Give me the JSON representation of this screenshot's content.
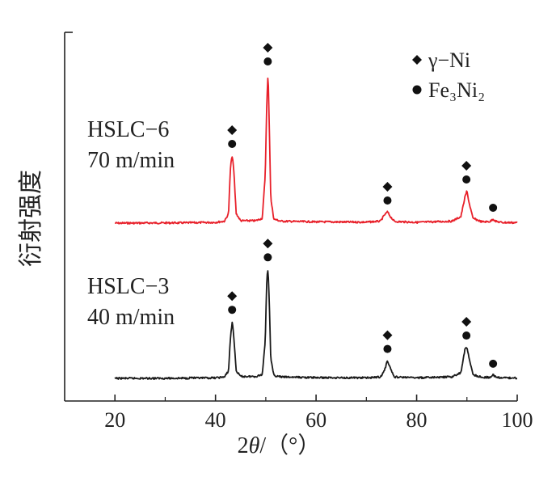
{
  "chart_data": {
    "type": "line",
    "ylabel": "衍射强度",
    "xlabel_parts": {
      "base": "2",
      "theta": "θ",
      "rest": "/（°）"
    },
    "xlim": [
      10,
      100
    ],
    "xticks": [
      20,
      40,
      60,
      80,
      100
    ],
    "grid": false,
    "legend_position": "top-right",
    "legend": [
      {
        "marker": "diamond",
        "label": "γ−Ni"
      },
      {
        "marker": "circle",
        "label": "Fe₃Ni₂"
      }
    ],
    "series": [
      {
        "name": "HSLC−6",
        "label_line1": "HSLC−6",
        "label_line2": "70 m/min",
        "color": "#e8202a",
        "baseline": 0.0,
        "x": [
          20,
          34,
          40,
          41.8,
          42.6,
          43.0,
          43.35,
          43.7,
          44.1,
          45,
          48,
          49.3,
          49.9,
          50.2,
          50.45,
          50.7,
          51.0,
          51.6,
          53,
          60,
          70,
          72.8,
          73.6,
          74.2,
          74.8,
          75.6,
          80,
          87,
          88.8,
          89.6,
          90.0,
          90.4,
          91.2,
          93,
          94.6,
          95.2,
          95.8,
          97,
          100
        ],
        "y": [
          0,
          0.2,
          0.5,
          1.2,
          6,
          36,
          42,
          30,
          6,
          1.5,
          1.5,
          3,
          30,
          75,
          93,
          60,
          15,
          2.5,
          1.2,
          0.8,
          0.6,
          1.2,
          5,
          7,
          4,
          1,
          0.5,
          1.2,
          4,
          16,
          20,
          13,
          3,
          0.8,
          1,
          2.5,
          1,
          0.4,
          0.3
        ]
      },
      {
        "name": "HSLC−3",
        "label_line1": "HSLC−3",
        "label_line2": "40 m/min",
        "color": "#1a1a1a",
        "baseline": 0.0,
        "x": [
          20,
          30,
          34.5,
          35.2,
          36,
          40,
          41.8,
          42.6,
          43.0,
          43.35,
          43.7,
          44.1,
          45,
          48,
          49.3,
          49.9,
          50.2,
          50.45,
          50.7,
          51.0,
          51.6,
          53,
          60,
          70,
          72.8,
          73.6,
          74.2,
          74.8,
          75.6,
          80,
          87,
          88.8,
          89.6,
          90.0,
          90.4,
          91.2,
          93,
          94.6,
          95.2,
          95.8,
          97,
          100
        ],
        "y": [
          0,
          0.1,
          0.2,
          1,
          0.2,
          0.5,
          1.5,
          8,
          45,
          60,
          40,
          8,
          2,
          2,
          4,
          40,
          105,
          115,
          80,
          20,
          3,
          1.5,
          0.8,
          0.6,
          1.5,
          8,
          19,
          10,
          1.5,
          0.6,
          1.5,
          6,
          30,
          33,
          22,
          4,
          1,
          1.2,
          3.5,
          1.2,
          0.5,
          0.4
        ]
      }
    ],
    "peak_markers": [
      {
        "series": "HSLC−6",
        "x": 43.3,
        "y": 42,
        "markers": [
          "diamond",
          "circle"
        ]
      },
      {
        "series": "HSLC−6",
        "x": 50.4,
        "y": 93,
        "markers": [
          "diamond",
          "circle"
        ]
      },
      {
        "series": "HSLC−6",
        "x": 74.2,
        "y": 7,
        "markers": [
          "diamond",
          "circle"
        ]
      },
      {
        "series": "HSLC−6",
        "x": 89.9,
        "y": 20,
        "markers": [
          "diamond",
          "circle"
        ]
      },
      {
        "series": "HSLC−6",
        "x": 95.2,
        "y": 2.5,
        "markers": [
          "circle"
        ]
      },
      {
        "series": "HSLC−3",
        "x": 43.3,
        "y": 60,
        "markers": [
          "diamond",
          "circle"
        ]
      },
      {
        "series": "HSLC−3",
        "x": 50.4,
        "y": 115,
        "markers": [
          "diamond",
          "circle"
        ]
      },
      {
        "series": "HSLC−3",
        "x": 74.2,
        "y": 19,
        "markers": [
          "diamond",
          "circle"
        ]
      },
      {
        "series": "HSLC−3",
        "x": 89.9,
        "y": 33,
        "markers": [
          "diamond",
          "circle"
        ]
      },
      {
        "series": "HSLC−3",
        "x": 95.2,
        "y": 3.5,
        "markers": [
          "circle"
        ]
      }
    ]
  }
}
